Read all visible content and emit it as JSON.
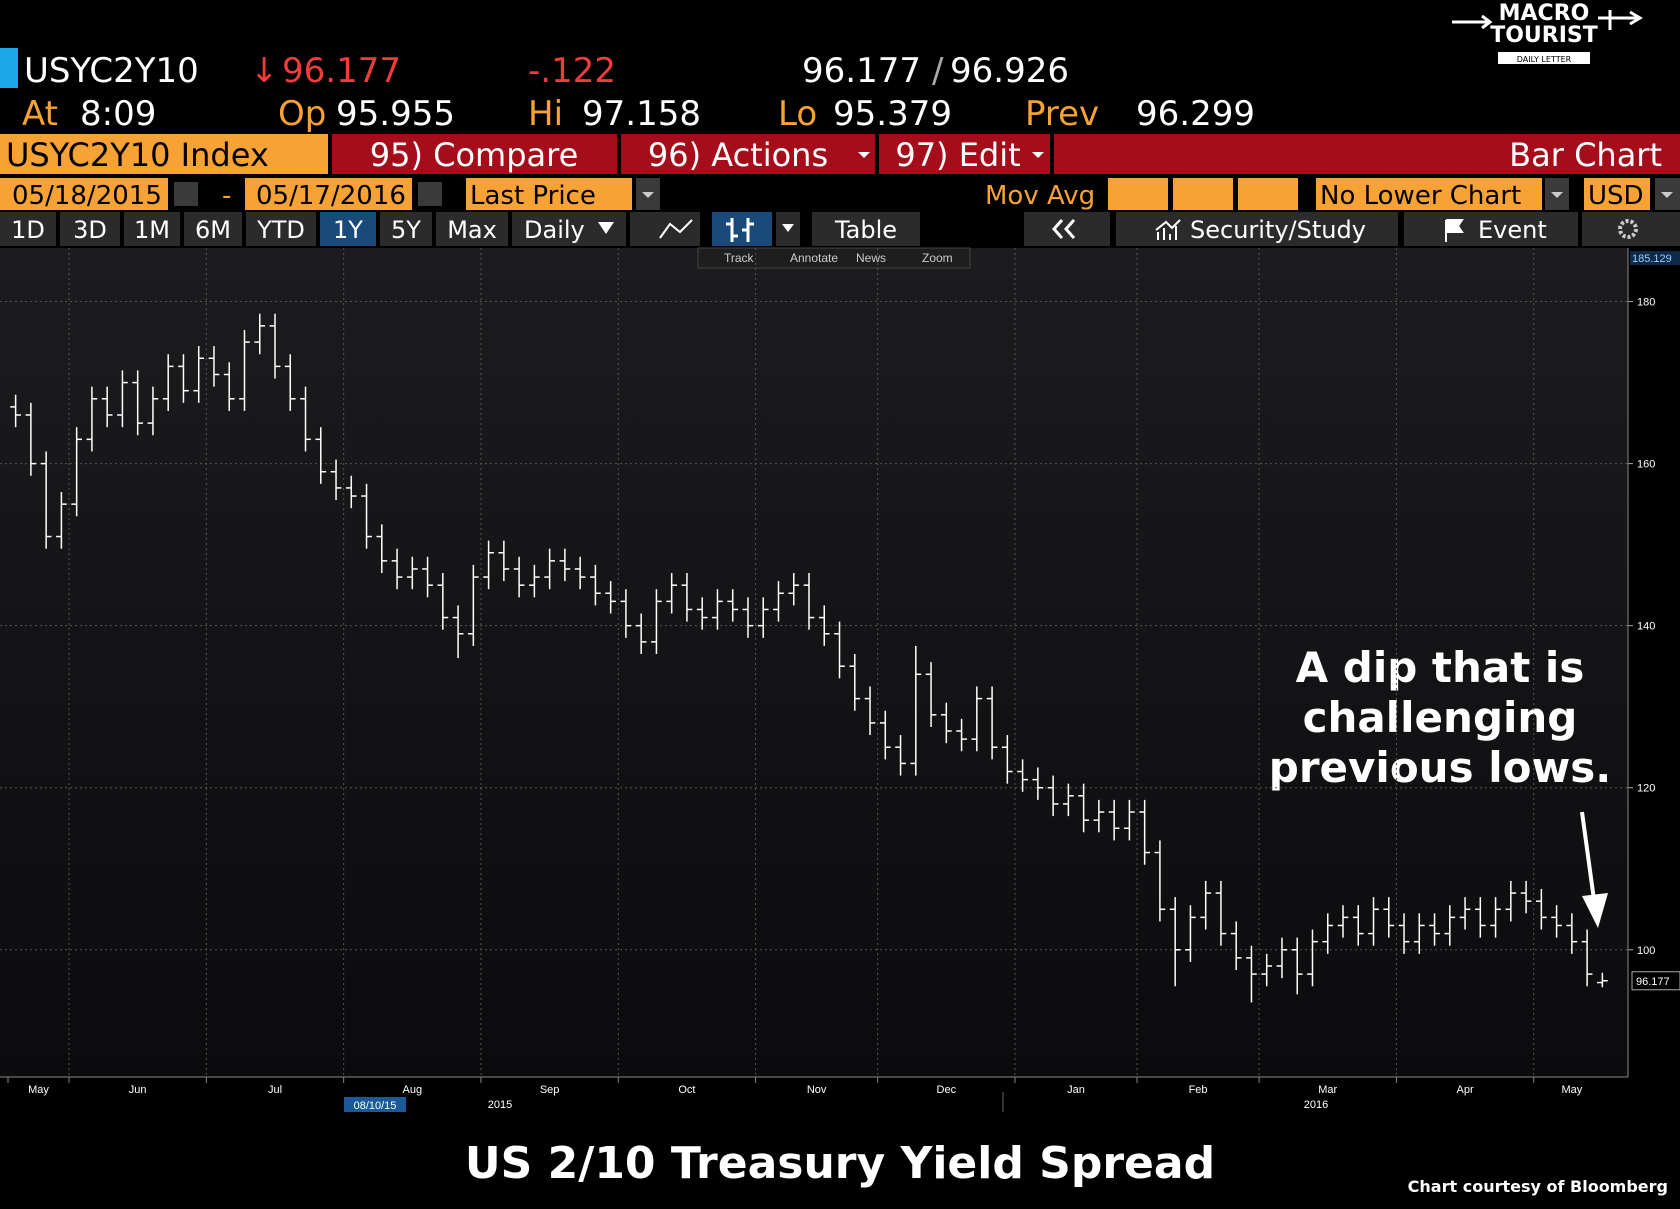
{
  "header": {
    "ticker": "USYC2Y10",
    "arrow": "↓",
    "last": "96.177",
    "change": "-.122",
    "bid": "96.177",
    "sep": "/",
    "ask": "96.926",
    "stats": [
      {
        "label": "At",
        "value": "8:09"
      },
      {
        "label": "Op",
        "value": "95.955"
      },
      {
        "label": "Hi",
        "value": "97.158"
      },
      {
        "label": "Lo",
        "value": "95.379"
      },
      {
        "label": "Prev",
        "value": "96.299"
      }
    ]
  },
  "menu": {
    "security": "USYC2Y10 Index",
    "compare": "95) Compare",
    "actions": "96) Actions",
    "edit": "97) Edit",
    "chart_type": "Bar Chart"
  },
  "settings": {
    "start": "05/18/2015",
    "dash": "-",
    "end": "05/17/2016",
    "field": "Last Price",
    "study": "Mov Avg",
    "lower": "No Lower Chart",
    "currency": "USD"
  },
  "toolbar": {
    "ranges": [
      "1D",
      "3D",
      "1M",
      "6M",
      "YTD",
      "1Y",
      "5Y",
      "Max"
    ],
    "period": "Daily",
    "table": "Table",
    "study": "Security/Study",
    "event": "Event"
  },
  "tools": [
    "Track",
    "Annotate",
    "News",
    "Zoom"
  ],
  "logo": {
    "line1": "MACRO",
    "line2": "TOURIST",
    "line3": "DAILY LETTER"
  },
  "annotation": [
    "A dip that is",
    "challenging",
    "previous lows."
  ],
  "credit": "Chart courtesy of Bloomberg",
  "chart_data": {
    "type": "ohlc",
    "title": "US 2/10 Treasury Yield Spread",
    "color": "#ffffff",
    "grid": true,
    "ylim": [
      84.3,
      185.129
    ],
    "yticks": [
      100,
      120,
      140,
      160,
      180
    ],
    "year_labels": [
      "2015",
      "2016"
    ],
    "cursor_date": "08/10/15",
    "categories": [
      "May",
      null,
      null,
      null,
      "Jun",
      null,
      null,
      null,
      null,
      null,
      null,
      null,
      null,
      "Jul",
      null,
      null,
      null,
      null,
      null,
      null,
      null,
      null,
      "Aug",
      null,
      null,
      null,
      null,
      null,
      null,
      null,
      null,
      "Sep",
      null,
      null,
      null,
      null,
      null,
      null,
      null,
      null,
      "Oct",
      null,
      null,
      null,
      null,
      null,
      null,
      null,
      null,
      "Nov",
      null,
      null,
      null,
      null,
      null,
      null,
      null,
      "Dec",
      null,
      null,
      null,
      null,
      null,
      null,
      null,
      null,
      "Jan",
      null,
      null,
      null,
      null,
      null,
      null,
      null,
      "Feb",
      null,
      null,
      null,
      null,
      null,
      null,
      null,
      "Mar",
      null,
      null,
      null,
      null,
      null,
      null,
      null,
      null,
      "Apr",
      null,
      null,
      null,
      null,
      null,
      null,
      null,
      null,
      "May",
      null,
      null,
      null,
      null
    ],
    "open": [
      167,
      166,
      160,
      151,
      155,
      163,
      168,
      166,
      170,
      165,
      168,
      172,
      169,
      173,
      171,
      168,
      175,
      177,
      172,
      168,
      163,
      159,
      157,
      156,
      151,
      148,
      146,
      147,
      145,
      141,
      139,
      146,
      149,
      147,
      145,
      146,
      148,
      147,
      146,
      144,
      143,
      140,
      138,
      143,
      145,
      142,
      141,
      143,
      142,
      140,
      142,
      144,
      145,
      141,
      139,
      135,
      131,
      128,
      125,
      123,
      134,
      129,
      127,
      126,
      131,
      125,
      122,
      121,
      120,
      118,
      119,
      116,
      117,
      115,
      117,
      112,
      105,
      100,
      104,
      107,
      102,
      99,
      97,
      98,
      100,
      97,
      101,
      103,
      104,
      102,
      105,
      103,
      101,
      103,
      102,
      104,
      105,
      103,
      105,
      107,
      106,
      104,
      103,
      101,
      95.955
    ],
    "high": [
      168.5,
      167.5,
      161.5,
      156.5,
      164.5,
      169.5,
      169.5,
      171.5,
      171.5,
      169.5,
      173.5,
      173.5,
      174.5,
      174.5,
      172.5,
      176.5,
      178.5,
      178.5,
      173.5,
      169.5,
      164.5,
      160.5,
      158.5,
      157.5,
      152.5,
      149.5,
      148.5,
      148.5,
      146.5,
      142.5,
      147.5,
      150.5,
      150.5,
      148.5,
      147.5,
      149.5,
      149.5,
      148.5,
      147.5,
      145.5,
      144.5,
      141.5,
      144.5,
      146.5,
      146.5,
      143.5,
      144.5,
      144.5,
      143.5,
      143.5,
      145.5,
      146.5,
      146.5,
      142.5,
      140.5,
      136.5,
      132.5,
      129.5,
      126.5,
      137.5,
      135.5,
      130.5,
      128.5,
      132.5,
      132.5,
      126.5,
      123.5,
      122.5,
      121.5,
      120.5,
      120.5,
      118.5,
      118.5,
      118.5,
      118.5,
      113.5,
      106.5,
      105.5,
      108.5,
      108.5,
      103.5,
      100.5,
      99.5,
      101.5,
      101.5,
      102.5,
      104.5,
      105.5,
      105.5,
      106.5,
      106.5,
      104.5,
      104.5,
      104.5,
      105.5,
      106.5,
      106.5,
      106.5,
      108.5,
      108.5,
      107.5,
      105.5,
      104.5,
      102.5,
      97.158
    ],
    "low": [
      164.5,
      158.5,
      149.5,
      149.5,
      153.5,
      161.5,
      164.5,
      164.5,
      163.5,
      163.5,
      166.5,
      167.5,
      167.5,
      169.5,
      166.5,
      166.5,
      173.5,
      170.5,
      166.5,
      161.5,
      157.5,
      155.5,
      154.5,
      149.5,
      146.5,
      144.5,
      144.5,
      143.5,
      139.5,
      136,
      137.5,
      144.5,
      145.5,
      143.5,
      143.5,
      144.5,
      145.5,
      144.5,
      142.5,
      141.5,
      138.5,
      136.5,
      136.5,
      141.5,
      140.5,
      139.5,
      139.5,
      140.5,
      138.5,
      138.5,
      140.5,
      142.5,
      139.5,
      137.5,
      133.5,
      129.5,
      126.5,
      123.5,
      121.5,
      121.5,
      127.5,
      125.5,
      124.5,
      124.5,
      123.5,
      120.5,
      119.5,
      118.5,
      116.5,
      116.5,
      114.5,
      114.5,
      113.5,
      113.5,
      110.5,
      103.5,
      95.5,
      98.5,
      102.5,
      100.5,
      97.5,
      93.5,
      95.5,
      96.5,
      94.5,
      95.5,
      99.5,
      101.5,
      100.5,
      100.5,
      101.5,
      99.5,
      99.5,
      100.5,
      100.5,
      102.5,
      101.5,
      101.5,
      103.5,
      104.5,
      102.5,
      101.5,
      99.5,
      95.5,
      95.379
    ],
    "close": [
      166,
      160,
      151,
      155,
      163,
      168,
      166,
      170,
      165,
      168,
      172,
      169,
      173,
      171,
      168,
      175,
      177,
      172,
      168,
      163,
      159,
      157,
      156,
      151,
      148,
      146,
      147,
      145,
      141,
      139,
      146,
      149,
      147,
      145,
      146,
      148,
      147,
      146,
      144,
      143,
      140,
      138,
      143,
      145,
      142,
      141,
      143,
      142,
      140,
      142,
      144,
      145,
      141,
      139,
      135,
      131,
      128,
      125,
      123,
      134,
      129,
      127,
      126,
      131,
      125,
      122,
      121,
      120,
      118,
      119,
      116,
      117,
      115,
      117,
      112,
      105,
      100,
      104,
      107,
      102,
      99,
      97,
      98,
      100,
      97,
      101,
      103,
      104,
      102,
      105,
      103,
      101,
      103,
      102,
      104,
      105,
      103,
      105,
      107,
      106,
      104,
      103,
      101,
      97,
      96.177
    ]
  }
}
